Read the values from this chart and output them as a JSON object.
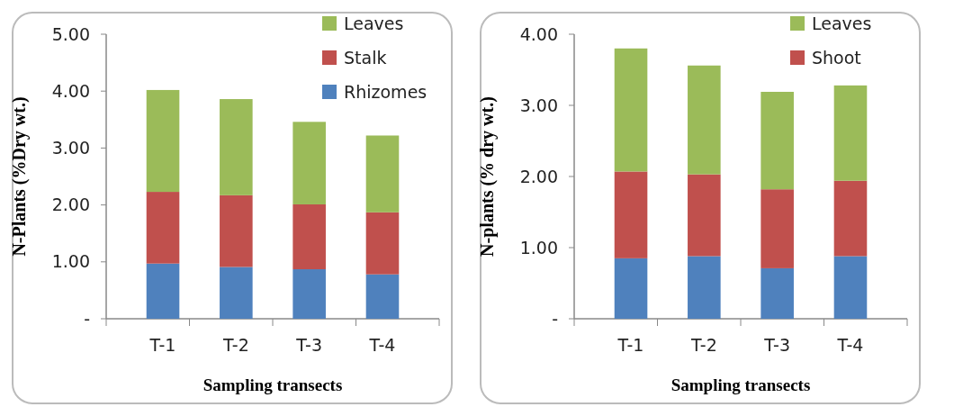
{
  "chart_data": [
    {
      "type": "bar",
      "stacked": true,
      "xlabel": "Sampling transects",
      "ylabel": "N-Plants (%Dry wt.)",
      "categories": [
        "T-1",
        "T-2",
        "T-3",
        "T-4"
      ],
      "series": [
        {
          "name": "Rhizomes",
          "color": "#4f81bd",
          "values": [
            0.97,
            0.91,
            0.87,
            0.78
          ]
        },
        {
          "name": "Stalk",
          "color": "#c0504d",
          "values": [
            1.26,
            1.26,
            1.14,
            1.09
          ]
        },
        {
          "name": "Leaves",
          "color": "#9bbb59",
          "values": [
            1.79,
            1.69,
            1.45,
            1.35
          ]
        }
      ],
      "ylim": [
        0,
        5
      ],
      "yticks": [
        {
          "value": 0,
          "label": "-"
        },
        {
          "value": 1,
          "label": "1.00"
        },
        {
          "value": 2,
          "label": "2.00"
        },
        {
          "value": 3,
          "label": "3.00"
        },
        {
          "value": 4,
          "label": "4.00"
        },
        {
          "value": 5,
          "label": "5.00"
        }
      ],
      "legend": "top right",
      "grid": false
    },
    {
      "type": "bar",
      "stacked": true,
      "xlabel": "Sampling transects",
      "ylabel": "N-plants (% dry wt.)",
      "categories": [
        "T-1",
        "T-2",
        "T-3",
        "T-4"
      ],
      "series": [
        {
          "color": "#4f81bd",
          "values": [
            0.85,
            0.88,
            0.71,
            0.88
          ]
        },
        {
          "name": "Shoot",
          "color": "#c0504d",
          "values": [
            1.22,
            1.15,
            1.11,
            1.06
          ]
        },
        {
          "name": "Leaves",
          "color": "#9bbb59",
          "values": [
            1.73,
            1.53,
            1.37,
            1.34
          ]
        }
      ],
      "ylim": [
        0,
        4
      ],
      "yticks": [
        {
          "value": 0,
          "label": "-"
        },
        {
          "value": 1,
          "label": "1.00"
        },
        {
          "value": 2,
          "label": "2.00"
        },
        {
          "value": 3,
          "label": "3.00"
        },
        {
          "value": 4,
          "label": "4.00"
        }
      ],
      "legend": "top right",
      "grid": false
    }
  ]
}
